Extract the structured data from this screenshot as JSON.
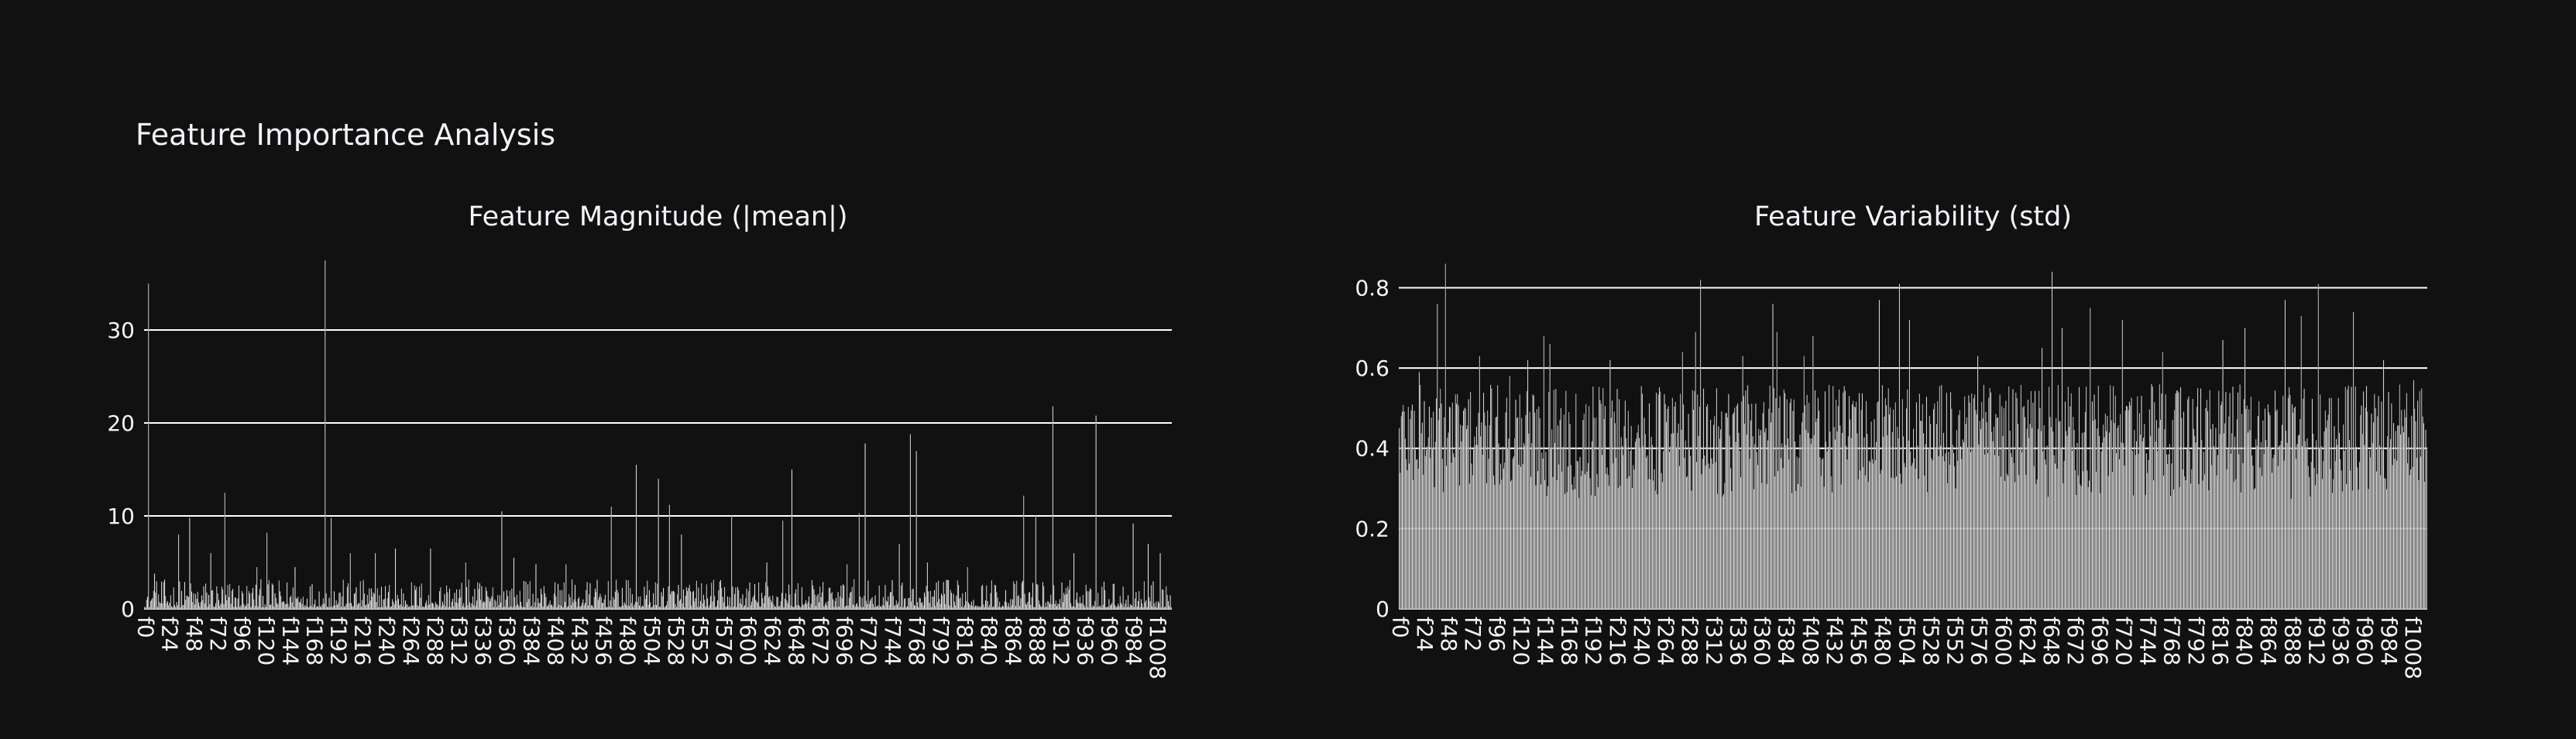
{
  "title": "Feature Importance Analysis",
  "theme": {
    "background": "#111111",
    "bar_color": "#ffffff",
    "grid_color": "#ffffff",
    "text_color": "#f2f5fa"
  },
  "chart_data": [
    {
      "type": "bar",
      "title": "Feature Magnitude (|mean|)",
      "xlabel": "",
      "ylabel": "",
      "category_prefix": "f",
      "category_count": 1024,
      "tick_every": 24,
      "ylim": [
        0,
        38
      ],
      "yticks": [
        0,
        10,
        20,
        30
      ],
      "grid": true,
      "baseline_range": [
        0.2,
        3.2
      ],
      "spikes": [
        {
          "x": "f4",
          "value": 35
        },
        {
          "x": "f10",
          "value": 3.8
        },
        {
          "x": "f34",
          "value": 8
        },
        {
          "x": "f45",
          "value": 9.8
        },
        {
          "x": "f66",
          "value": 6
        },
        {
          "x": "f80",
          "value": 12.5
        },
        {
          "x": "f112",
          "value": 4.5
        },
        {
          "x": "f122",
          "value": 8.2
        },
        {
          "x": "f150",
          "value": 4.5
        },
        {
          "x": "f180",
          "value": 37.5
        },
        {
          "x": "f186",
          "value": 9.8
        },
        {
          "x": "f205",
          "value": 6
        },
        {
          "x": "f230",
          "value": 6
        },
        {
          "x": "f250",
          "value": 6.5
        },
        {
          "x": "f285",
          "value": 6.5
        },
        {
          "x": "f320",
          "value": 5
        },
        {
          "x": "f356",
          "value": 10.5
        },
        {
          "x": "f368",
          "value": 5.5
        },
        {
          "x": "f390",
          "value": 4.8
        },
        {
          "x": "f420",
          "value": 4.8
        },
        {
          "x": "f465",
          "value": 11
        },
        {
          "x": "f490",
          "value": 15.5
        },
        {
          "x": "f512",
          "value": 14
        },
        {
          "x": "f523",
          "value": 11.2
        },
        {
          "x": "f535",
          "value": 8
        },
        {
          "x": "f585",
          "value": 10
        },
        {
          "x": "f620",
          "value": 5
        },
        {
          "x": "f636",
          "value": 9.5
        },
        {
          "x": "f645",
          "value": 15
        },
        {
          "x": "f700",
          "value": 4.8
        },
        {
          "x": "f712",
          "value": 10.3
        },
        {
          "x": "f718",
          "value": 17.8
        },
        {
          "x": "f752",
          "value": 7
        },
        {
          "x": "f763",
          "value": 18.8
        },
        {
          "x": "f769",
          "value": 17
        },
        {
          "x": "f780",
          "value": 5
        },
        {
          "x": "f820",
          "value": 4.5
        },
        {
          "x": "f876",
          "value": 12.2
        },
        {
          "x": "f888",
          "value": 10
        },
        {
          "x": "f905",
          "value": 21.8
        },
        {
          "x": "f926",
          "value": 6
        },
        {
          "x": "f948",
          "value": 20.8
        },
        {
          "x": "f985",
          "value": 9.2
        },
        {
          "x": "f1000",
          "value": 7
        },
        {
          "x": "f1012",
          "value": 6
        }
      ]
    },
    {
      "type": "bar",
      "title": "Feature Variability (std)",
      "xlabel": "",
      "ylabel": "",
      "category_prefix": "f",
      "category_count": 1024,
      "tick_every": 24,
      "ylim": [
        0,
        0.88
      ],
      "yticks": [
        0,
        0.2,
        0.4,
        0.6,
        0.8
      ],
      "grid": true,
      "baseline_range": [
        0.12,
        0.56
      ],
      "spikes": [
        {
          "x": "f20",
          "value": 0.59
        },
        {
          "x": "f38",
          "value": 0.76
        },
        {
          "x": "f46",
          "value": 0.86
        },
        {
          "x": "f80",
          "value": 0.63
        },
        {
          "x": "f110",
          "value": 0.58
        },
        {
          "x": "f128",
          "value": 0.62
        },
        {
          "x": "f144",
          "value": 0.68
        },
        {
          "x": "f150",
          "value": 0.66
        },
        {
          "x": "f210",
          "value": 0.62
        },
        {
          "x": "f282",
          "value": 0.64
        },
        {
          "x": "f295",
          "value": 0.69
        },
        {
          "x": "f300",
          "value": 0.82
        },
        {
          "x": "f342",
          "value": 0.63
        },
        {
          "x": "f372",
          "value": 0.76
        },
        {
          "x": "f376",
          "value": 0.69
        },
        {
          "x": "f403",
          "value": 0.63
        },
        {
          "x": "f412",
          "value": 0.68
        },
        {
          "x": "f478",
          "value": 0.77
        },
        {
          "x": "f498",
          "value": 0.81
        },
        {
          "x": "f508",
          "value": 0.72
        },
        {
          "x": "f576",
          "value": 0.63
        },
        {
          "x": "f640",
          "value": 0.65
        },
        {
          "x": "f650",
          "value": 0.84
        },
        {
          "x": "f660",
          "value": 0.7
        },
        {
          "x": "f688",
          "value": 0.75
        },
        {
          "x": "f720",
          "value": 0.72
        },
        {
          "x": "f760",
          "value": 0.64
        },
        {
          "x": "f820",
          "value": 0.67
        },
        {
          "x": "f842",
          "value": 0.7
        },
        {
          "x": "f882",
          "value": 0.77
        },
        {
          "x": "f898",
          "value": 0.73
        },
        {
          "x": "f915",
          "value": 0.81
        },
        {
          "x": "f950",
          "value": 0.74
        },
        {
          "x": "f980",
          "value": 0.62
        },
        {
          "x": "f1010",
          "value": 0.57
        }
      ]
    }
  ]
}
